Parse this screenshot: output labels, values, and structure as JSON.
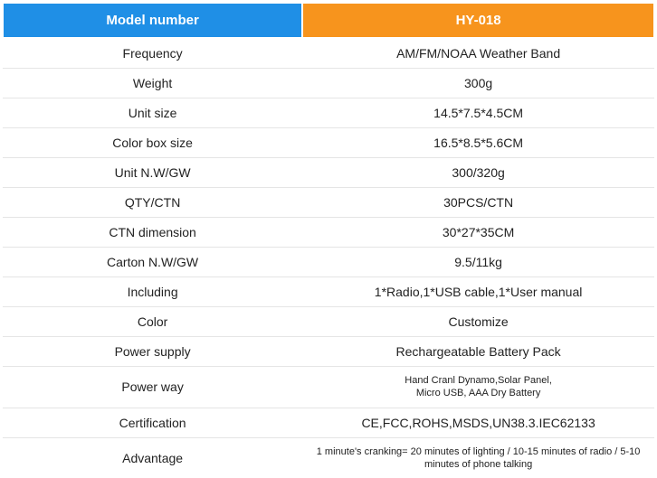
{
  "table": {
    "header": {
      "left": "Model number",
      "right": "HY-018"
    },
    "header_colors": {
      "left_bg": "#1f8fe6",
      "right_bg": "#f7941d",
      "text": "#ffffff"
    },
    "row_border_color": "#e5e5e5",
    "cell_text_color": "#222222",
    "rows": [
      {
        "label": "Frequency",
        "value": "AM/FM/NOAA Weather Band",
        "small": false
      },
      {
        "label": "Weight",
        "value": "300g",
        "small": false
      },
      {
        "label": "Unit size",
        "value": "14.5*7.5*4.5CM",
        "small": false
      },
      {
        "label": "Color box size",
        "value": "16.5*8.5*5.6CM",
        "small": false
      },
      {
        "label": "Unit N.W/GW",
        "value": "300/320g",
        "small": false
      },
      {
        "label": "QTY/CTN",
        "value": "30PCS/CTN",
        "small": false
      },
      {
        "label": "CTN dimension",
        "value": "30*27*35CM",
        "small": false
      },
      {
        "label": "Carton N.W/GW",
        "value": "9.5/11kg",
        "small": false
      },
      {
        "label": "Including",
        "value": "1*Radio,1*USB cable,1*User manual",
        "small": false
      },
      {
        "label": "Color",
        "value": "Customize",
        "small": false
      },
      {
        "label": "Power supply",
        "value": "Rechargeatable Battery Pack",
        "small": false
      },
      {
        "label": "Power way",
        "value": "Hand Cranl Dynamo,Solar Panel,\nMicro USB, AAA Dry Battery",
        "small": true
      },
      {
        "label": "Certification",
        "value": "CE,FCC,ROHS,MSDS,UN38.3.IEC62133",
        "small": false
      },
      {
        "label": "Advantage",
        "value": "1 minute's cranking= 20 minutes of lighting / 10-15 minutes of radio / 5-10 minutes of phone talking",
        "small": true
      }
    ]
  }
}
